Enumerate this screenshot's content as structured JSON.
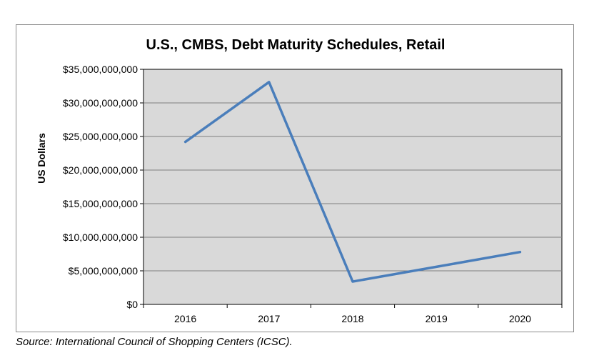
{
  "chart_data": {
    "type": "line",
    "title": "U.S., CMBS, Debt Maturity Schedules, Retail",
    "xlabel": "",
    "ylabel": "US Dollars",
    "categories": [
      "2016",
      "2017",
      "2018",
      "2019",
      "2020"
    ],
    "series": [
      {
        "values": [
          24200000000,
          33100000000,
          3400000000,
          5600000000,
          7800000000
        ]
      }
    ],
    "ylim": [
      0,
      35000000000
    ],
    "yticks": [
      0,
      5000000000,
      10000000000,
      15000000000,
      20000000000,
      25000000000,
      30000000000,
      35000000000
    ],
    "ytick_labels": [
      "$0",
      "$5,000,000,000",
      "$10,000,000,000",
      "$15,000,000,000",
      "$20,000,000,000",
      "$25,000,000,000",
      "$30,000,000,000",
      "$35,000,000,000"
    ],
    "grid": true,
    "legend": "none",
    "colors": {
      "line": "#4a7ebb",
      "plot_background": "#d9d9d9",
      "gridline": "#7f7f7f"
    }
  },
  "source_note": "Source: International Council of Shopping Centers (ICSC)."
}
